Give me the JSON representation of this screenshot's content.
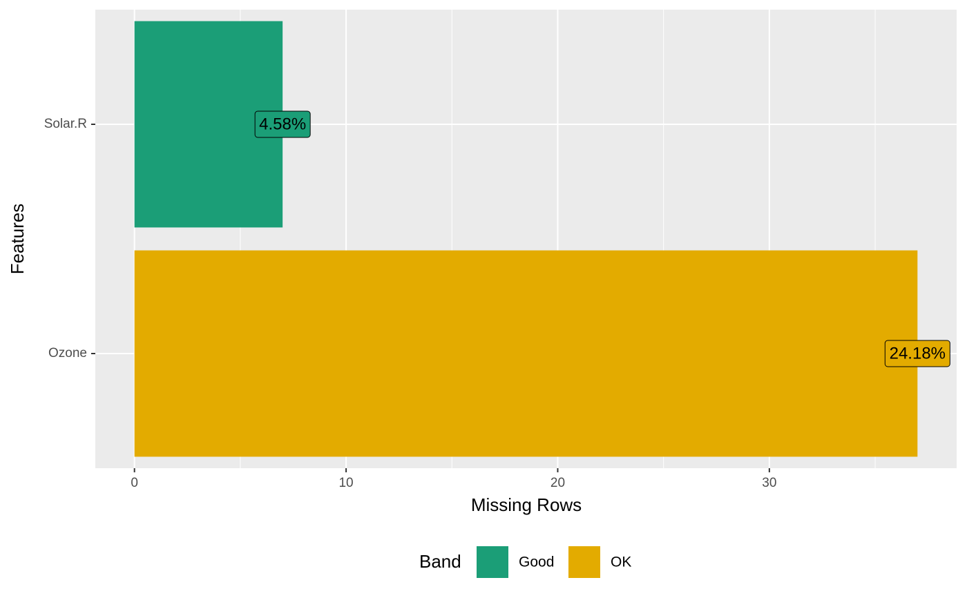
{
  "chart_data": {
    "type": "bar",
    "orientation": "horizontal",
    "x_label": "Missing Rows",
    "y_label": "Features",
    "categories": [
      "Ozone",
      "Solar.R"
    ],
    "values": [
      37,
      7
    ],
    "percents": [
      24.18,
      4.58
    ],
    "percent_labels": [
      "24.18%",
      "4.58%"
    ],
    "bands": [
      "OK",
      "Good"
    ],
    "xlim": [
      -1.85,
      38.85
    ],
    "xticks": [
      0,
      10,
      20,
      30
    ],
    "xminor": [
      5,
      15,
      25,
      35
    ],
    "grid": true,
    "legend": {
      "position": "bottom",
      "title": "Band",
      "entries": [
        {
          "name": "Good",
          "color": "#1b9e77"
        },
        {
          "name": "OK",
          "color": "#e3ab00"
        }
      ]
    }
  }
}
